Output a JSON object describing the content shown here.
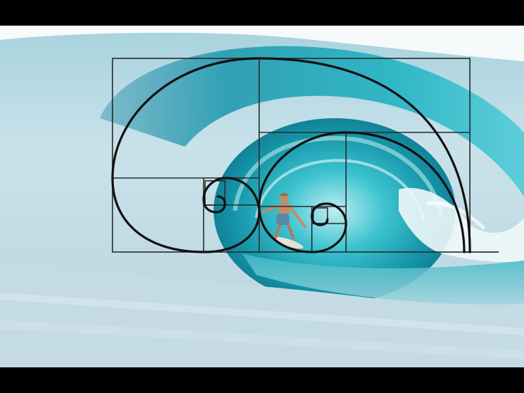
{
  "scene": {
    "subject": "surfer-in-wave-barrel",
    "overlay": "golden-spiral-rectangles"
  },
  "colors": {
    "letterbox": "#000000",
    "sky": "#f4f8fa",
    "wave_light": "#dfeef3",
    "wave_mid": "#8fc9d6",
    "wave_deep": "#1f9fb1",
    "wave_dark": "#0b6f86",
    "foam": "#eef6f8",
    "overlay_line": "#1a1a1a"
  }
}
